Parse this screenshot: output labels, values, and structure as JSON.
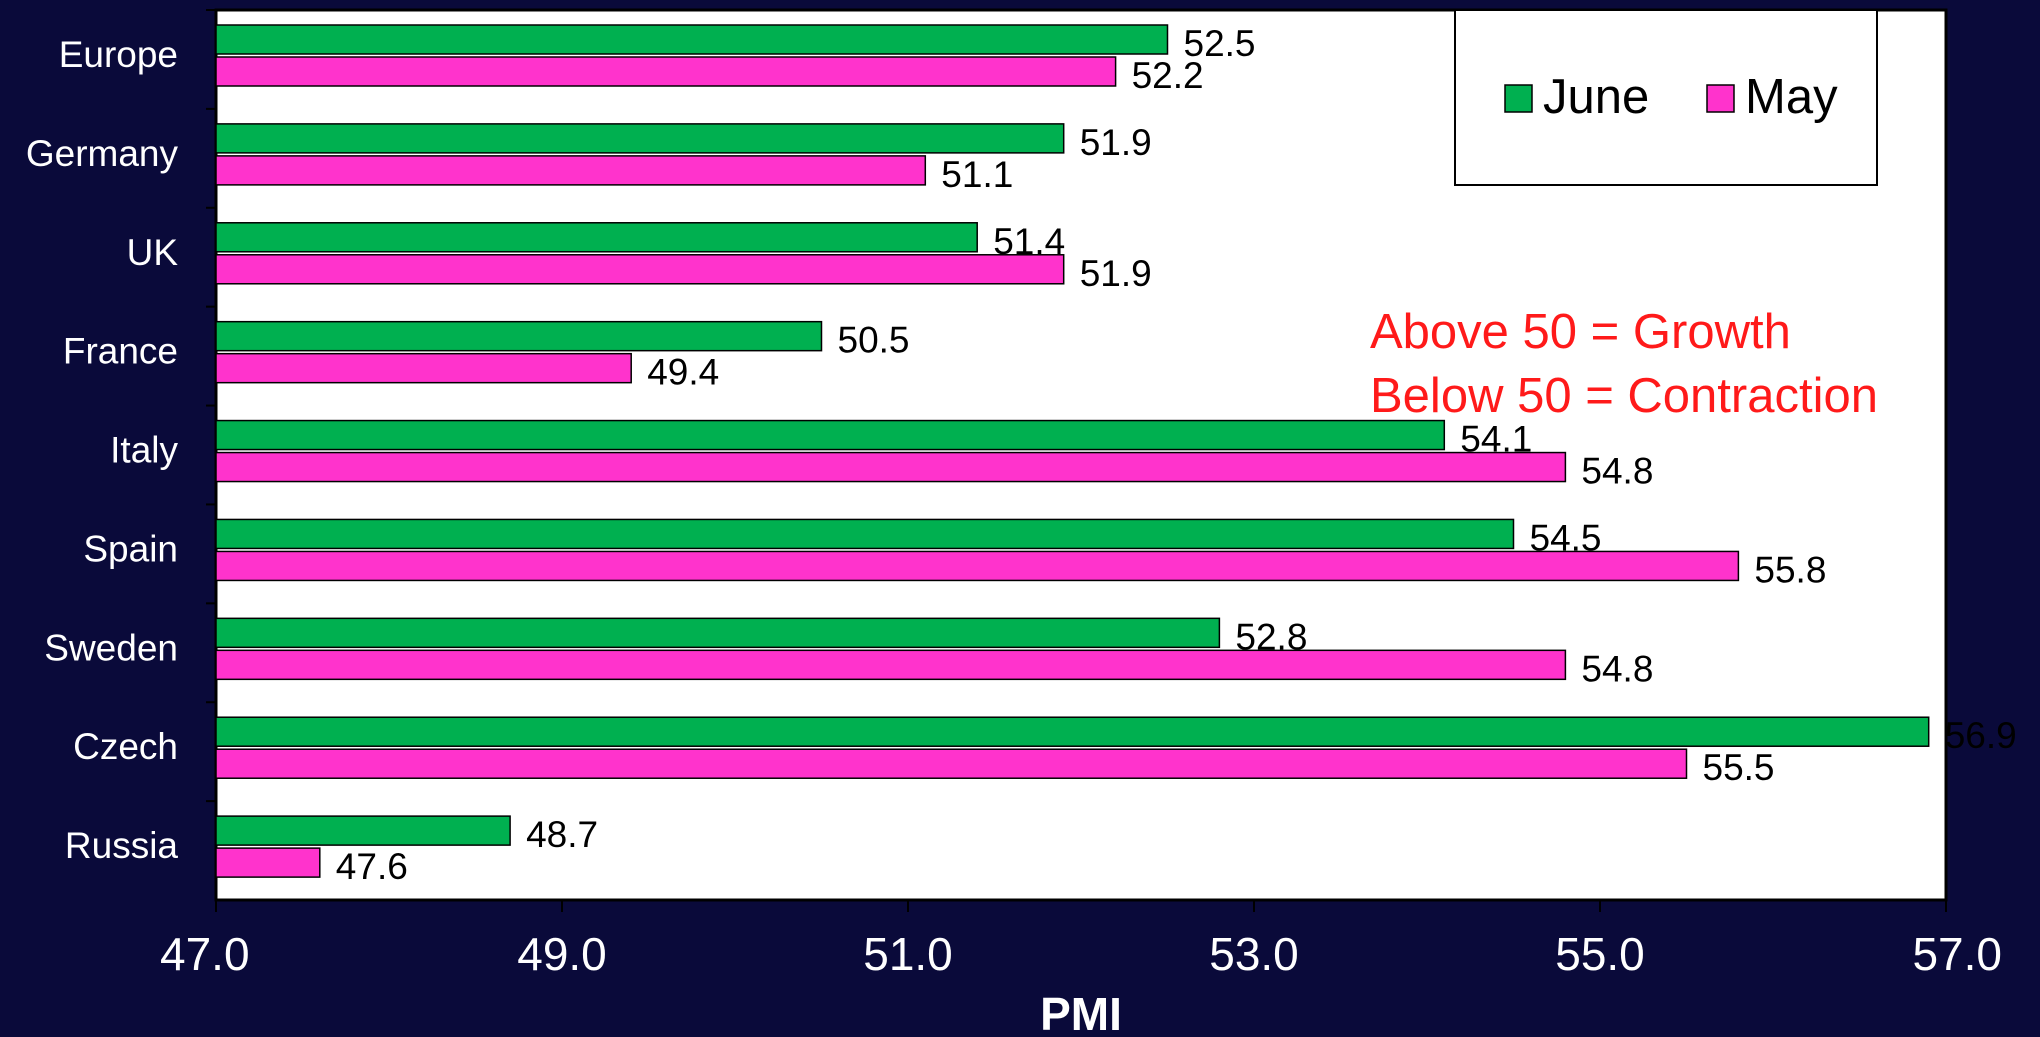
{
  "chart_data": {
    "type": "bar",
    "orientation": "horizontal",
    "categories": [
      "Europe",
      "Germany",
      "UK",
      "France",
      "Italy",
      "Spain",
      "Sweden",
      "Czech",
      "Russia"
    ],
    "series": [
      {
        "name": "June",
        "values": [
          52.5,
          51.9,
          51.4,
          50.5,
          54.1,
          54.5,
          52.8,
          56.9,
          48.7
        ],
        "color": "#00b050"
      },
      {
        "name": "May",
        "values": [
          52.2,
          51.1,
          51.9,
          49.4,
          54.8,
          55.8,
          54.8,
          55.5,
          47.6
        ],
        "color": "#ff33cc"
      }
    ],
    "xlabel": "PMI",
    "ylabel": "",
    "title": "",
    "xlim": [
      47.0,
      57.0
    ],
    "xticks": [
      "47.0",
      "49.0",
      "51.0",
      "53.0",
      "55.0",
      "57.0"
    ],
    "data_labels": true,
    "legend_position": "top-right",
    "grid": false,
    "annotations": [
      "Above 50 = Growth",
      "Below 50 = Contraction"
    ],
    "annotation_color": "#ff1a1a",
    "plot_background": "#ffffff",
    "page_background": "#0a0a3a"
  }
}
